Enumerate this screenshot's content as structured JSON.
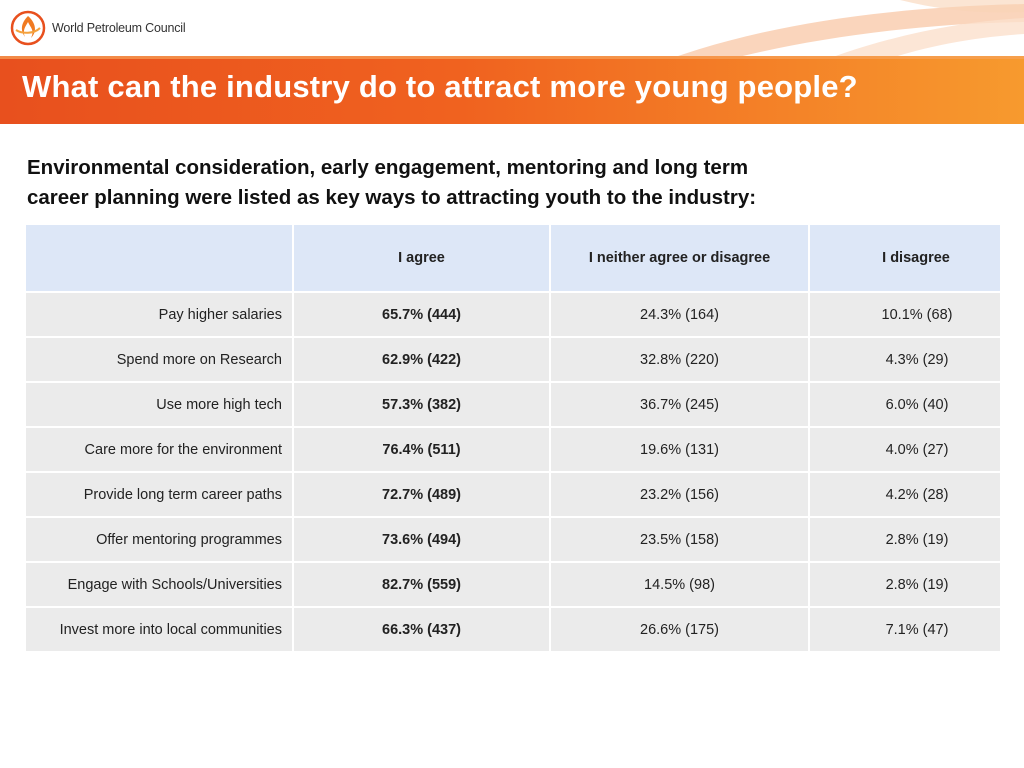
{
  "logo": {
    "text": "World Petroleum Council",
    "icon": "wpc-flame-logo-icon"
  },
  "colors": {
    "title_bar_start": "#e8501e",
    "title_bar_end": "#f79a2e",
    "header_bg": "#dde7f7",
    "row_bg": "#ebebeb"
  },
  "title": "What can the industry do to attract more young people?",
  "intro": {
    "line1": "Environmental consideration, early engagement, mentoring and long term",
    "line2": "career planning were listed as key ways to attracting youth to the industry:"
  },
  "table": {
    "headers": [
      "",
      "I agree",
      "I neither agree or disagree",
      "I disagree"
    ],
    "rows": [
      {
        "label": "Pay higher salaries",
        "agree": "65.7% (444)",
        "neither": "24.3% (164)",
        "disagree": "10.1% (68)"
      },
      {
        "label": "Spend more on Research",
        "agree": "62.9% (422)",
        "neither": "32.8% (220)",
        "disagree": "4.3% (29)"
      },
      {
        "label": "Use more high tech",
        "agree": "57.3% (382)",
        "neither": "36.7% (245)",
        "disagree": "6.0% (40)"
      },
      {
        "label": "Care more for the environment",
        "agree": "76.4% (511)",
        "neither": "19.6% (131)",
        "disagree": "4.0% (27)"
      },
      {
        "label": "Provide long term career paths",
        "agree": "72.7% (489)",
        "neither": "23.2% (156)",
        "disagree": "4.2% (28)"
      },
      {
        "label": "Offer mentoring programmes",
        "agree": "73.6% (494)",
        "neither": "23.5% (158)",
        "disagree": "2.8% (19)"
      },
      {
        "label": "Engage with Schools/Universities",
        "agree": "82.7% (559)",
        "neither": "14.5% (98)",
        "disagree": "2.8% (19)"
      },
      {
        "label": "Invest more into local communities",
        "agree": "66.3% (437)",
        "neither": "26.6% (175)",
        "disagree": "7.1% (47)"
      }
    ]
  }
}
